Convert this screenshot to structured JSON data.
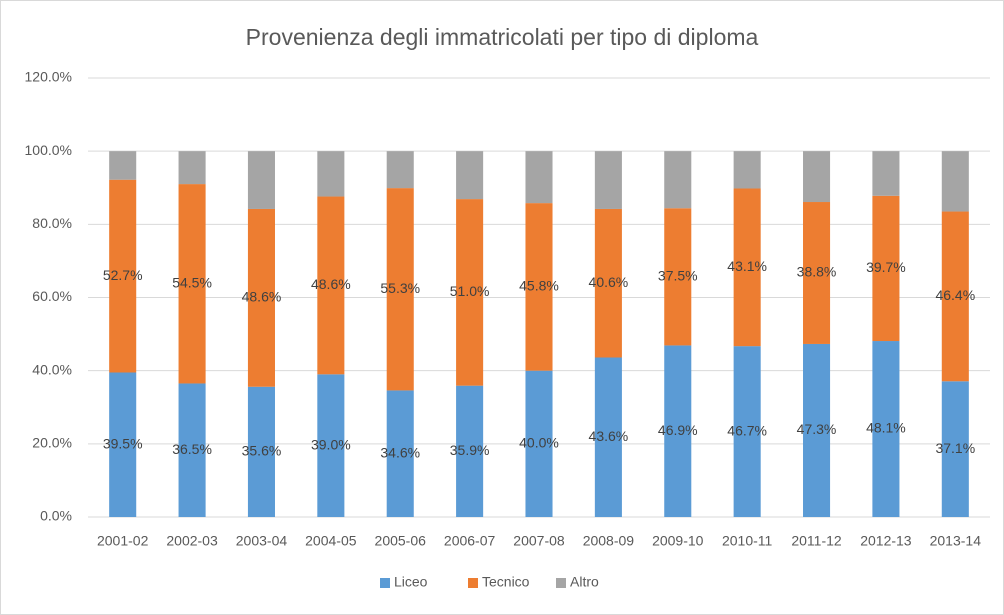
{
  "chart_data": {
    "type": "stacked-bar",
    "title": "Provenienza degli immatricolati per tipo di diploma",
    "categories": [
      "2001-02",
      "2002-03",
      "2003-04",
      "2004-05",
      "2005-06",
      "2006-07",
      "2007-08",
      "2008-09",
      "2009-10",
      "2010-11",
      "2011-12",
      "2012-13",
      "2013-14"
    ],
    "series": [
      {
        "name": "Liceo",
        "color": "#5b9bd5",
        "values": [
          39.5,
          36.5,
          35.6,
          39.0,
          34.6,
          35.9,
          40.0,
          43.6,
          46.9,
          46.7,
          47.3,
          48.1,
          37.1
        ],
        "value_labels": [
          "39.5%",
          "36.5%",
          "35.6%",
          "39.0%",
          "34.6%",
          "35.9%",
          "40.0%",
          "43.6%",
          "46.9%",
          "46.7%",
          "47.3%",
          "48.1%",
          "37.1%"
        ]
      },
      {
        "name": "Tecnico",
        "color": "#ed7d31",
        "values": [
          52.7,
          54.5,
          48.6,
          48.6,
          55.3,
          51.0,
          45.8,
          40.6,
          37.5,
          43.1,
          38.8,
          39.7,
          46.4
        ],
        "value_labels": [
          "52.7%",
          "54.5%",
          "48.6%",
          "48.6%",
          "55.3%",
          "51.0%",
          "45.8%",
          "40.6%",
          "37.5%",
          "43.1%",
          "38.8%",
          "39.7%",
          "46.4%"
        ]
      },
      {
        "name": "Altro",
        "color": "#a5a5a5",
        "values": [
          7.8,
          9.0,
          15.8,
          12.4,
          10.1,
          13.1,
          14.2,
          15.8,
          15.6,
          10.2,
          13.9,
          12.2,
          16.5
        ]
      }
    ],
    "ylim": [
      0,
      120
    ],
    "yticks": [
      {
        "value": 0,
        "label": "0.0%"
      },
      {
        "value": 20,
        "label": "20.0%"
      },
      {
        "value": 40,
        "label": "40.0%"
      },
      {
        "value": 60,
        "label": "60.0%"
      },
      {
        "value": 80,
        "label": "80.0%"
      },
      {
        "value": 100,
        "label": "100.0%"
      },
      {
        "value": 120,
        "label": "120.0%"
      }
    ],
    "grid": true,
    "legend": "bottom"
  }
}
